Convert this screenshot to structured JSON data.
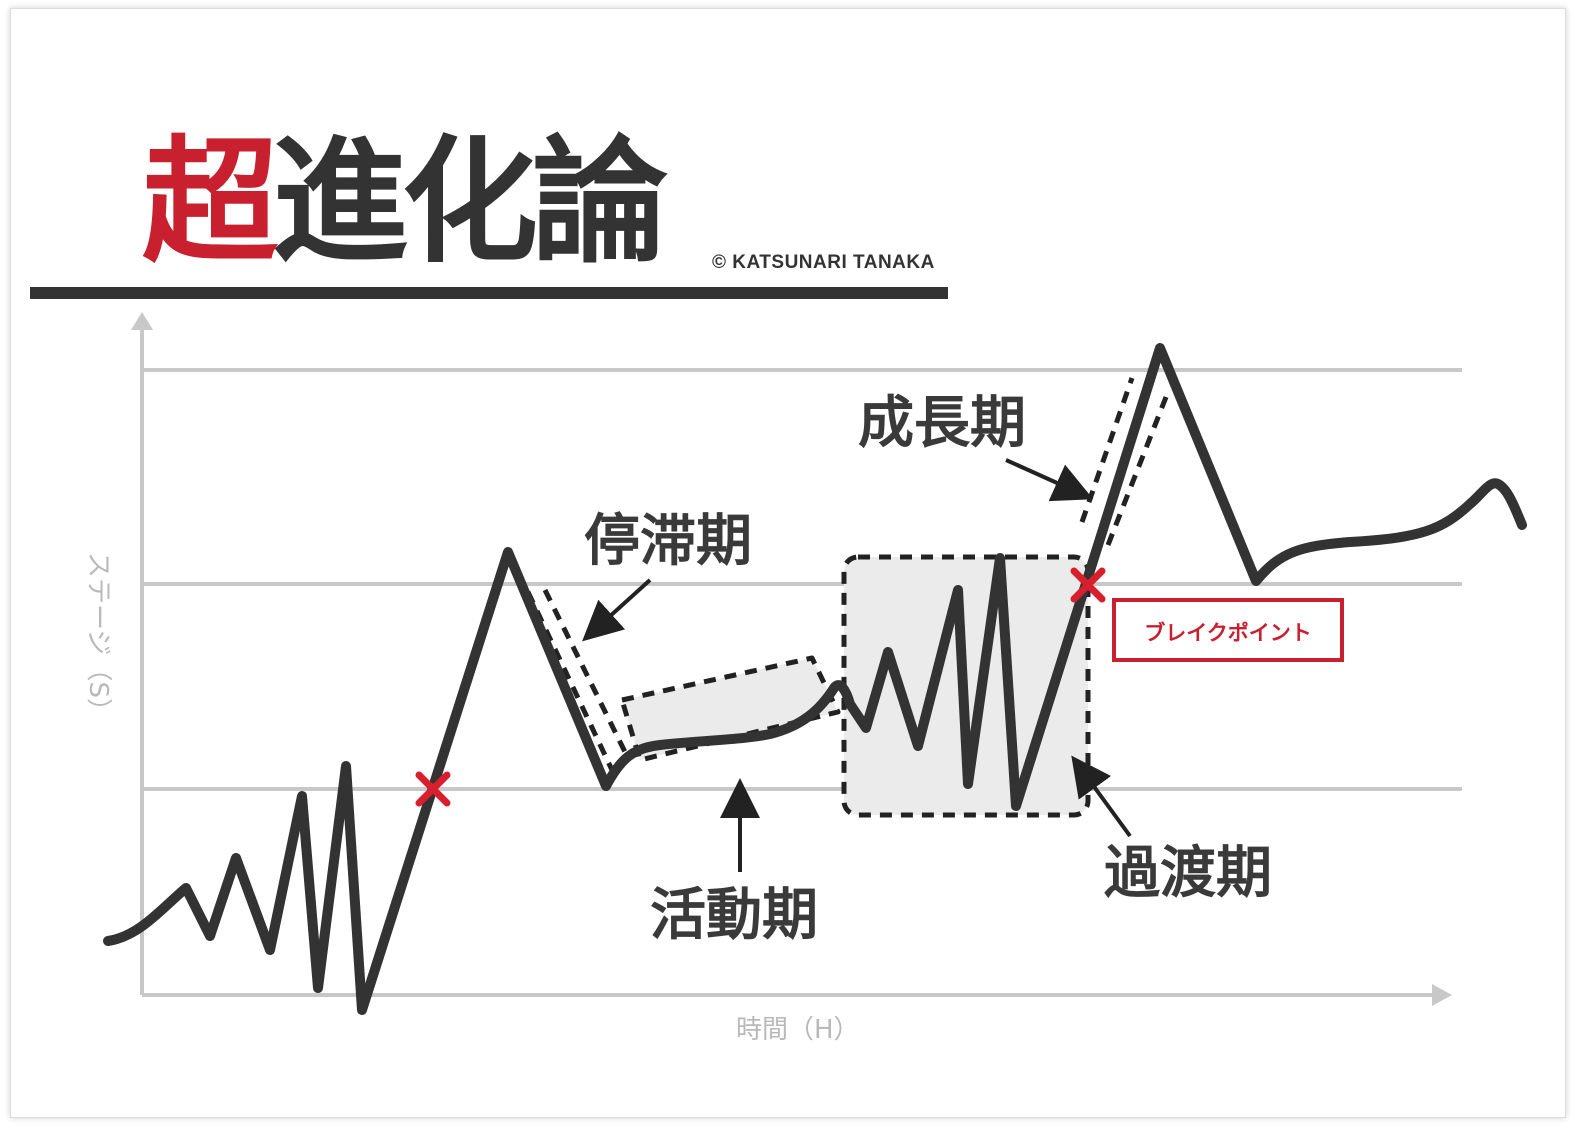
{
  "title": {
    "accent": "超",
    "rest": "進化論"
  },
  "copyright": "© KATSUNARI TANAKA",
  "axes": {
    "y_label": "ステージ（S）",
    "x_label": "時間（H）"
  },
  "phases": {
    "stagnation": "停滞期",
    "activity": "活動期",
    "transition": "過渡期",
    "growth": "成長期"
  },
  "break_point": "ブレイクポイント",
  "colors": {
    "accent": "#c8202e",
    "line": "#333333",
    "grid": "#c8c8c8",
    "axis_text": "#b9b9b9",
    "phase_fill": "#ebebeb"
  },
  "markers": {
    "break_marker": "red-x-icon",
    "arrow": "arrow-icon"
  }
}
